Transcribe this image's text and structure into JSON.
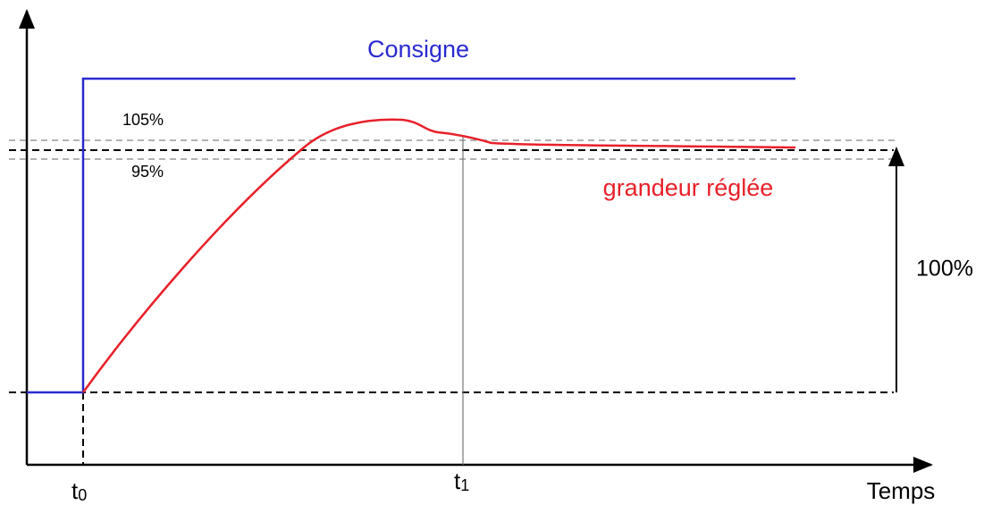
{
  "labels": {
    "setpoint": "Consigne",
    "upper_band": "105%",
    "lower_band": "95%",
    "controlled_variable": "grandeur réglée",
    "full_scale": "100%",
    "t0": {
      "base": "t",
      "sub": "0"
    },
    "t1": {
      "base": "t",
      "sub": "1"
    },
    "x_axis": "Temps"
  }
}
